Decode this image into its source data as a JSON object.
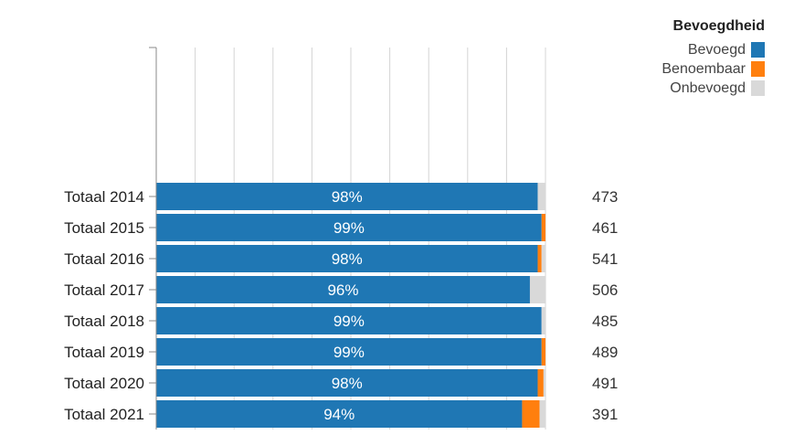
{
  "colors": {
    "bevoegd": "#1f77b4",
    "benoembaar": "#ff7f0e",
    "onbevoegd": "#d9d9d9"
  },
  "legend": {
    "title": "Bevoegdheid",
    "items": [
      {
        "label": "Bevoegd",
        "color": "#1f77b4"
      },
      {
        "label": "Benoembaar",
        "color": "#ff7f0e"
      },
      {
        "label": "Onbevoegd",
        "color": "#d9d9d9"
      }
    ]
  },
  "chart_data": {
    "type": "bar",
    "orientation": "horizontal",
    "stacked": true,
    "normalized": true,
    "categories": [
      "Totaal 2014",
      "Totaal 2015",
      "Totaal 2016",
      "Totaal 2017",
      "Totaal 2018",
      "Totaal 2019",
      "Totaal 2020",
      "Totaal 2021"
    ],
    "series": [
      {
        "name": "Bevoegd",
        "values": [
          0.98,
          0.99,
          0.98,
          0.96,
          0.99,
          0.99,
          0.98,
          0.94
        ]
      },
      {
        "name": "Benoembaar",
        "values": [
          0.0,
          0.01,
          0.01,
          0.0,
          0.0,
          0.01,
          0.015,
          0.045
        ]
      },
      {
        "name": "Onbevoegd",
        "values": [
          0.02,
          0.0,
          0.01,
          0.04,
          0.01,
          0.0,
          0.005,
          0.015
        ]
      }
    ],
    "data_labels": [
      "98%",
      "99%",
      "98%",
      "96%",
      "99%",
      "99%",
      "98%",
      "94%"
    ],
    "totals": [
      "473",
      "461",
      "541",
      "506",
      "485",
      "489",
      "491",
      "391"
    ],
    "xlim": [
      0,
      1
    ],
    "grid": true,
    "legend_position": "top-right"
  }
}
